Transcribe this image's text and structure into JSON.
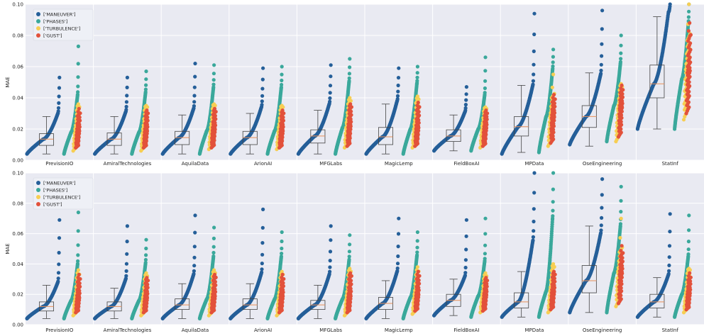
{
  "colors": {
    "background": "#e9eaf2",
    "grid": "#ffffff",
    "MANEUVER": "#255f99",
    "PHASES": "#3aa89b",
    "TURBULENCE": "#f7ce53",
    "GUST": "#e2513b",
    "box": "#444444",
    "median": "#e8905a"
  },
  "icons": [
    "legend-dot-icon"
  ],
  "chart_data": [
    {
      "type": "scatter",
      "panel": "top",
      "ylabel": "MAE",
      "xlabel": "",
      "ylim": [
        0,
        0.1
      ],
      "yticks": [
        "0.00",
        "0.02",
        "0.04",
        "0.06",
        "0.08",
        "0.10"
      ],
      "grid": true,
      "legend": {
        "placement": "top-left",
        "entries": [
          "['MANEUVER']",
          "['PHASES']",
          "['TURBULENCE']",
          "['GUST']"
        ]
      },
      "categories": [
        "PrevisionIO",
        "AmiralTechnologies",
        "AquilaData",
        "ArionAI",
        "MFGLabs",
        "MagicLemp",
        "FieldBoxAI",
        "MPData",
        "OseEngineering",
        "StatInf"
      ],
      "box": [
        {
          "low": 0.004,
          "q1": 0.0095,
          "median": 0.0135,
          "q3": 0.017,
          "high": 0.028
        },
        {
          "low": 0.004,
          "q1": 0.0095,
          "median": 0.0135,
          "q3": 0.0175,
          "high": 0.028
        },
        {
          "low": 0.004,
          "q1": 0.01,
          "median": 0.0145,
          "q3": 0.0185,
          "high": 0.029
        },
        {
          "low": 0.004,
          "q1": 0.01,
          "median": 0.0145,
          "q3": 0.0185,
          "high": 0.03
        },
        {
          "low": 0.004,
          "q1": 0.011,
          "median": 0.0155,
          "q3": 0.0195,
          "high": 0.032
        },
        {
          "low": 0.004,
          "q1": 0.01,
          "median": 0.015,
          "q3": 0.021,
          "high": 0.036
        },
        {
          "low": 0.006,
          "q1": 0.012,
          "median": 0.0155,
          "q3": 0.0195,
          "high": 0.029
        },
        {
          "low": 0.005,
          "q1": 0.0155,
          "median": 0.0215,
          "q3": 0.028,
          "high": 0.048
        },
        {
          "low": 0.009,
          "q1": 0.021,
          "median": 0.028,
          "q3": 0.035,
          "high": 0.056
        },
        {
          "low": 0.02,
          "q1": 0.04,
          "median": 0.049,
          "q3": 0.061,
          "high": 0.092
        }
      ],
      "series": [
        {
          "name": "['MANEUVER']",
          "min": [
            0.004,
            0.004,
            0.004,
            0.004,
            0.004,
            0.004,
            0.006,
            0.004,
            0.01,
            0.02
          ],
          "median": [
            0.0135,
            0.0135,
            0.0145,
            0.0145,
            0.0155,
            0.015,
            0.0155,
            0.0215,
            0.028,
            0.049
          ],
          "p95": [
            0.03,
            0.031,
            0.033,
            0.034,
            0.036,
            0.038,
            0.031,
            0.048,
            0.055,
            0.095
          ],
          "max": [
            0.053,
            0.053,
            0.062,
            0.059,
            0.061,
            0.059,
            0.047,
            0.094,
            0.096,
            0.1
          ]
        },
        {
          "name": "['PHASES']",
          "min": [
            0.004,
            0.004,
            0.004,
            0.004,
            0.004,
            0.004,
            0.006,
            0.005,
            0.012,
            0.02
          ],
          "median": [
            0.018,
            0.018,
            0.019,
            0.019,
            0.021,
            0.02,
            0.02,
            0.028,
            0.035,
            0.052
          ],
          "p95": [
            0.042,
            0.043,
            0.046,
            0.046,
            0.05,
            0.049,
            0.042,
            0.058,
            0.062,
            0.087
          ],
          "max": [
            0.073,
            0.057,
            0.061,
            0.06,
            0.065,
            0.06,
            0.066,
            0.071,
            0.08,
            0.1
          ]
        },
        {
          "name": "['TURBULENCE']",
          "min": [
            0.006,
            0.006,
            0.007,
            0.007,
            0.008,
            0.008,
            0.008,
            0.009,
            0.012,
            0.026
          ],
          "median": [
            0.02,
            0.02,
            0.021,
            0.021,
            0.024,
            0.023,
            0.022,
            0.028,
            0.033,
            0.058
          ],
          "p95": [
            0.034,
            0.034,
            0.035,
            0.034,
            0.038,
            0.039,
            0.033,
            0.042,
            0.047,
            0.08
          ],
          "max": [
            0.036,
            0.035,
            0.036,
            0.035,
            0.04,
            0.041,
            0.034,
            0.055,
            0.049,
            0.1
          ]
        },
        {
          "name": "['GUST']",
          "min": [
            0.008,
            0.008,
            0.008,
            0.008,
            0.009,
            0.009,
            0.009,
            0.011,
            0.015,
            0.03
          ],
          "median": [
            0.018,
            0.018,
            0.019,
            0.018,
            0.021,
            0.02,
            0.02,
            0.027,
            0.033,
            0.056
          ],
          "p95": [
            0.03,
            0.03,
            0.031,
            0.03,
            0.034,
            0.034,
            0.03,
            0.039,
            0.045,
            0.08
          ],
          "max": [
            0.033,
            0.032,
            0.033,
            0.032,
            0.036,
            0.037,
            0.032,
            0.042,
            0.048,
            0.088
          ]
        }
      ]
    },
    {
      "type": "scatter",
      "panel": "bottom",
      "ylabel": "MAE",
      "xlabel": "",
      "ylim": [
        0,
        0.1
      ],
      "yticks": [
        "0.00",
        "0.02",
        "0.04",
        "0.06",
        "0.08",
        "0.10"
      ],
      "grid": true,
      "legend": {
        "placement": "top-left",
        "entries": [
          "['MANEUVER']",
          "['PHASES']",
          "['TURBULENCE']",
          "['GUST']"
        ]
      },
      "categories": [
        "PrevisionIO",
        "AmiralTechnologies",
        "AquilaData",
        "ArionAI",
        "MFGLabs",
        "MagicLemp",
        "FieldBoxAI",
        "MPData",
        "OseEngineering",
        "StatInf"
      ],
      "box": [
        {
          "low": 0.004,
          "q1": 0.009,
          "median": 0.012,
          "q3": 0.015,
          "high": 0.026
        },
        {
          "low": 0.004,
          "q1": 0.009,
          "median": 0.012,
          "q3": 0.015,
          "high": 0.024
        },
        {
          "low": 0.004,
          "q1": 0.01,
          "median": 0.013,
          "q3": 0.017,
          "high": 0.027
        },
        {
          "low": 0.004,
          "q1": 0.01,
          "median": 0.013,
          "q3": 0.017,
          "high": 0.027
        },
        {
          "low": 0.004,
          "q1": 0.01,
          "median": 0.013,
          "q3": 0.016,
          "high": 0.026
        },
        {
          "low": 0.004,
          "q1": 0.01,
          "median": 0.014,
          "q3": 0.018,
          "high": 0.029
        },
        {
          "low": 0.006,
          "q1": 0.012,
          "median": 0.016,
          "q3": 0.02,
          "high": 0.03
        },
        {
          "low": 0.005,
          "q1": 0.011,
          "median": 0.015,
          "q3": 0.021,
          "high": 0.035
        },
        {
          "low": 0.008,
          "q1": 0.021,
          "median": 0.029,
          "q3": 0.039,
          "high": 0.065
        },
        {
          "low": 0.005,
          "q1": 0.011,
          "median": 0.015,
          "q3": 0.02,
          "high": 0.031
        }
      ],
      "series": [
        {
          "name": "['MANEUVER']",
          "min": [
            0.004,
            0.004,
            0.004,
            0.004,
            0.004,
            0.004,
            0.006,
            0.005,
            0.008,
            0.005
          ],
          "median": [
            0.012,
            0.012,
            0.013,
            0.013,
            0.013,
            0.014,
            0.016,
            0.015,
            0.029,
            0.015
          ],
          "p95": [
            0.028,
            0.03,
            0.033,
            0.034,
            0.033,
            0.035,
            0.032,
            0.055,
            0.06,
            0.033
          ],
          "max": [
            0.069,
            0.065,
            0.072,
            0.076,
            0.065,
            0.07,
            0.069,
            0.1,
            0.096,
            0.073
          ]
        },
        {
          "name": "['PHASES']",
          "min": [
            0.004,
            0.004,
            0.004,
            0.004,
            0.004,
            0.004,
            0.005,
            0.005,
            0.008,
            0.005
          ],
          "median": [
            0.016,
            0.016,
            0.017,
            0.017,
            0.017,
            0.018,
            0.019,
            0.022,
            0.034,
            0.02
          ],
          "p95": [
            0.04,
            0.04,
            0.044,
            0.044,
            0.042,
            0.045,
            0.042,
            0.07,
            0.065,
            0.045
          ],
          "max": [
            0.074,
            0.056,
            0.064,
            0.061,
            0.059,
            0.061,
            0.07,
            0.1,
            0.091,
            0.072
          ]
        },
        {
          "name": "['TURBULENCE']",
          "min": [
            0.006,
            0.006,
            0.006,
            0.006,
            0.006,
            0.007,
            0.008,
            0.008,
            0.012,
            0.008
          ],
          "median": [
            0.018,
            0.018,
            0.019,
            0.019,
            0.019,
            0.02,
            0.02,
            0.022,
            0.035,
            0.021
          ],
          "p95": [
            0.033,
            0.032,
            0.034,
            0.033,
            0.035,
            0.035,
            0.032,
            0.038,
            0.05,
            0.036
          ],
          "max": [
            0.036,
            0.034,
            0.036,
            0.035,
            0.037,
            0.038,
            0.034,
            0.04,
            0.07,
            0.037
          ]
        },
        {
          "name": "['GUST']",
          "min": [
            0.008,
            0.008,
            0.008,
            0.008,
            0.008,
            0.009,
            0.009,
            0.01,
            0.014,
            0.01
          ],
          "median": [
            0.017,
            0.017,
            0.018,
            0.018,
            0.018,
            0.019,
            0.019,
            0.021,
            0.033,
            0.02
          ],
          "p95": [
            0.03,
            0.029,
            0.031,
            0.03,
            0.032,
            0.032,
            0.029,
            0.033,
            0.047,
            0.031
          ],
          "max": [
            0.033,
            0.031,
            0.033,
            0.033,
            0.034,
            0.035,
            0.031,
            0.035,
            0.052,
            0.034
          ]
        }
      ]
    }
  ]
}
